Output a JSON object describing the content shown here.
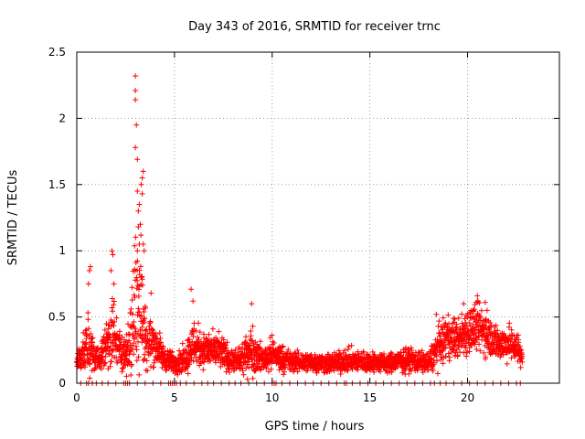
{
  "chart_data": {
    "type": "scatter",
    "title": "Day 343 of 2016, SRMTID for receiver trnc",
    "xlabel": "GPS time / hours",
    "ylabel": "SRMTID / TECUs",
    "xlim": [
      0,
      24.7
    ],
    "ylim": [
      0,
      2.5
    ],
    "xticks": [
      0,
      5,
      10,
      15,
      20
    ],
    "xtick_labels": [
      "0",
      "5",
      "10",
      "15",
      "20"
    ],
    "yticks": [
      0,
      0.5,
      1,
      1.5,
      2,
      2.5
    ],
    "ytick_labels": [
      "0",
      "0.5",
      "1",
      "1.5",
      "2",
      "2.5"
    ],
    "grid": true,
    "marker": "+",
    "color": "#ff0000",
    "series": [
      {
        "name": "SRMTID",
        "envelope": {
          "hours": [
            0.0,
            0.3,
            0.6,
            0.9,
            1.2,
            1.5,
            1.8,
            2.1,
            2.4,
            2.7,
            3.0,
            3.2,
            3.4,
            3.6,
            3.9,
            4.2,
            4.5,
            5.0,
            5.5,
            6.0,
            6.5,
            7.0,
            7.5,
            8.0,
            8.5,
            8.9,
            9.5,
            10.0,
            11.0,
            12.0,
            13.0,
            14.0,
            15.0,
            16.0,
            17.0,
            18.0,
            18.5,
            19.0,
            19.5,
            20.0,
            20.5,
            21.0,
            21.5,
            22.0,
            22.5,
            22.8
          ],
          "median": [
            0.17,
            0.22,
            0.28,
            0.2,
            0.18,
            0.3,
            0.4,
            0.28,
            0.22,
            0.3,
            0.6,
            0.7,
            0.45,
            0.3,
            0.32,
            0.25,
            0.18,
            0.15,
            0.18,
            0.3,
            0.25,
            0.25,
            0.22,
            0.16,
            0.18,
            0.25,
            0.18,
            0.22,
            0.16,
            0.16,
            0.15,
            0.17,
            0.16,
            0.15,
            0.18,
            0.15,
            0.28,
            0.35,
            0.33,
            0.4,
            0.42,
            0.38,
            0.3,
            0.3,
            0.28,
            0.2
          ],
          "spread": [
            0.06,
            0.1,
            0.18,
            0.08,
            0.07,
            0.15,
            0.25,
            0.12,
            0.1,
            0.2,
            0.5,
            0.55,
            0.25,
            0.15,
            0.15,
            0.1,
            0.07,
            0.06,
            0.08,
            0.15,
            0.1,
            0.1,
            0.1,
            0.06,
            0.08,
            0.15,
            0.07,
            0.1,
            0.06,
            0.06,
            0.06,
            0.07,
            0.06,
            0.06,
            0.07,
            0.06,
            0.12,
            0.12,
            0.12,
            0.15,
            0.15,
            0.13,
            0.1,
            0.1,
            0.1,
            0.07
          ]
        },
        "points_per_hour": 120,
        "highlight_points": [
          {
            "x": 3.0,
            "y": 2.32
          },
          {
            "x": 3.0,
            "y": 2.21
          },
          {
            "x": 3.0,
            "y": 2.14
          },
          {
            "x": 3.05,
            "y": 1.95
          },
          {
            "x": 3.0,
            "y": 1.78
          },
          {
            "x": 3.1,
            "y": 1.69
          },
          {
            "x": 3.4,
            "y": 1.6
          },
          {
            "x": 3.35,
            "y": 1.55
          },
          {
            "x": 3.3,
            "y": 1.5
          },
          {
            "x": 3.1,
            "y": 1.45
          },
          {
            "x": 3.35,
            "y": 1.43
          },
          {
            "x": 3.2,
            "y": 1.35
          },
          {
            "x": 3.15,
            "y": 1.3
          },
          {
            "x": 3.25,
            "y": 1.2
          },
          {
            "x": 3.15,
            "y": 1.18
          },
          {
            "x": 3.2,
            "y": 1.05
          },
          {
            "x": 3.4,
            "y": 1.05
          },
          {
            "x": 3.45,
            "y": 1.0
          },
          {
            "x": 3.1,
            "y": 1.0
          },
          {
            "x": 1.8,
            "y": 1.0
          },
          {
            "x": 1.85,
            "y": 0.97
          },
          {
            "x": 0.7,
            "y": 0.88
          },
          {
            "x": 0.65,
            "y": 0.85
          },
          {
            "x": 1.75,
            "y": 0.85
          },
          {
            "x": 3.3,
            "y": 0.8
          },
          {
            "x": 1.9,
            "y": 0.75
          },
          {
            "x": 0.6,
            "y": 0.75
          },
          {
            "x": 5.85,
            "y": 0.71
          },
          {
            "x": 3.8,
            "y": 0.68
          },
          {
            "x": 20.5,
            "y": 0.66
          },
          {
            "x": 8.95,
            "y": 0.6
          },
          {
            "x": 5.95,
            "y": 0.62
          },
          {
            "x": 20.9,
            "y": 0.61
          },
          {
            "x": 19.8,
            "y": 0.6
          },
          {
            "x": 3.5,
            "y": 0.58
          },
          {
            "x": 18.4,
            "y": 0.52
          },
          {
            "x": 20.3,
            "y": 0.55
          },
          {
            "x": 21.0,
            "y": 0.55
          }
        ],
        "zero_points_hours": [
          0.2,
          0.5,
          0.6,
          0.8,
          1.0,
          1.3,
          1.6,
          2.0,
          2.4,
          2.5,
          2.6,
          2.7,
          3.1,
          3.5,
          3.9,
          4.3,
          4.7,
          4.8,
          4.9,
          5.0,
          5.1,
          5.3,
          5.6,
          6.0,
          6.4,
          6.7,
          7.0,
          7.4,
          7.8,
          8.1,
          8.4,
          8.8,
          9.2,
          9.6,
          10.0,
          10.1,
          10.2,
          10.5,
          10.9,
          11.3,
          11.7,
          12.1,
          12.5,
          12.9,
          13.3,
          13.7,
          13.8,
          14.1,
          14.5,
          14.9,
          15.3,
          15.7,
          16.1,
          16.5,
          16.9,
          17.3,
          17.7,
          18.1,
          18.3,
          18.6,
          18.9,
          19.3,
          19.7,
          20.1,
          20.5,
          20.9,
          21.3,
          21.7,
          22.1,
          22.5,
          22.7
        ]
      }
    ]
  }
}
